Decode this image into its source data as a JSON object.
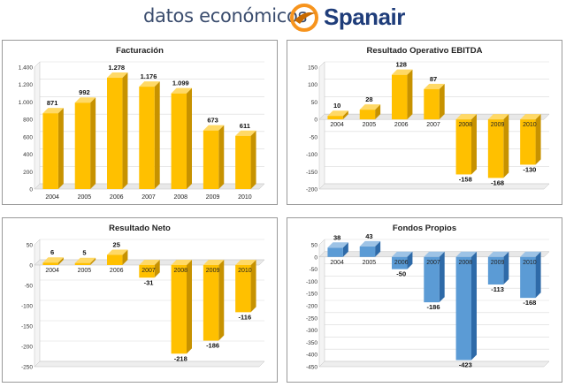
{
  "header": {
    "subtitle": "datos económicos",
    "brand": "Spanair",
    "logo_colors": {
      "ring": "#f7941d",
      "swoosh": "#c86a00"
    }
  },
  "colors": {
    "bar_yellow": "#ffc000",
    "bar_yellow_side": "#c79200",
    "bar_yellow_top": "#ffd966",
    "bar_blue": "#5b9bd5",
    "bar_blue_side": "#2e6aa8",
    "bar_blue_top": "#9dc3e6"
  },
  "chart_data": [
    {
      "type": "bar",
      "title": "Facturación",
      "categories": [
        "2004",
        "2005",
        "2006",
        "2007",
        "2008",
        "2009",
        "2010"
      ],
      "values": [
        871,
        992,
        1278,
        1176,
        1099,
        673,
        611
      ],
      "data_labels": [
        "871",
        "992",
        "1.278",
        "1.176",
        "1.099",
        "673",
        "611"
      ],
      "ylim": [
        0,
        1400
      ],
      "yticks": [
        0,
        200,
        400,
        600,
        800,
        1000,
        1200,
        1400
      ],
      "ytick_labels": [
        "0",
        "200",
        "400",
        "600",
        "800",
        "1.000",
        "1.200",
        "1.400"
      ],
      "color": "yellow",
      "category_axis": "bottom"
    },
    {
      "type": "bar",
      "title": "Resultado Operativo EBITDA",
      "categories": [
        "2004",
        "2005",
        "2006",
        "2007",
        "2008",
        "2009",
        "2010"
      ],
      "values": [
        10,
        28,
        128,
        87,
        -158,
        -168,
        -130
      ],
      "data_labels": [
        "10",
        "28",
        "128",
        "87",
        "-158",
        "-168",
        "-130"
      ],
      "ylim": [
        -200,
        150
      ],
      "yticks": [
        -200,
        -150,
        -100,
        -50,
        0,
        50,
        100,
        150
      ],
      "ytick_labels": [
        "-200",
        "-150",
        "-100",
        "-50",
        "0",
        "50",
        "100",
        "150"
      ],
      "color": "yellow",
      "category_axis": "zero"
    },
    {
      "type": "bar",
      "title": "Resultado Neto",
      "categories": [
        "2004",
        "2005",
        "2006",
        "2007",
        "2008",
        "2009",
        "2010"
      ],
      "values": [
        6,
        5,
        25,
        -31,
        -218,
        -186,
        -116
      ],
      "data_labels": [
        "6",
        "5",
        "25",
        "-31",
        "-218",
        "-186",
        "-116"
      ],
      "ylim": [
        -250,
        50
      ],
      "yticks": [
        -250,
        -200,
        -150,
        -100,
        -50,
        0,
        50
      ],
      "ytick_labels": [
        "-250",
        "-200",
        "-150",
        "-100",
        "-50",
        "0",
        "50"
      ],
      "color": "yellow",
      "category_axis": "zero"
    },
    {
      "type": "bar",
      "title": "Fondos Propios",
      "categories": [
        "2004",
        "2005",
        "2006",
        "2007",
        "2008",
        "2009",
        "2010"
      ],
      "values": [
        38,
        43,
        -50,
        -186,
        -423,
        -113,
        -168
      ],
      "data_labels": [
        "38",
        "43",
        "-50",
        "-186",
        "-423",
        "-113",
        "-168"
      ],
      "ylim": [
        -450,
        50
      ],
      "yticks": [
        -450,
        -400,
        -350,
        -300,
        -250,
        -200,
        -150,
        -100,
        -50,
        0,
        50
      ],
      "ytick_labels": [
        "-450",
        "-400",
        "-350",
        "-300",
        "-250",
        "-200",
        "-150",
        "-100",
        "-50",
        "0",
        "50"
      ],
      "color": "blue",
      "category_axis": "zero"
    }
  ]
}
